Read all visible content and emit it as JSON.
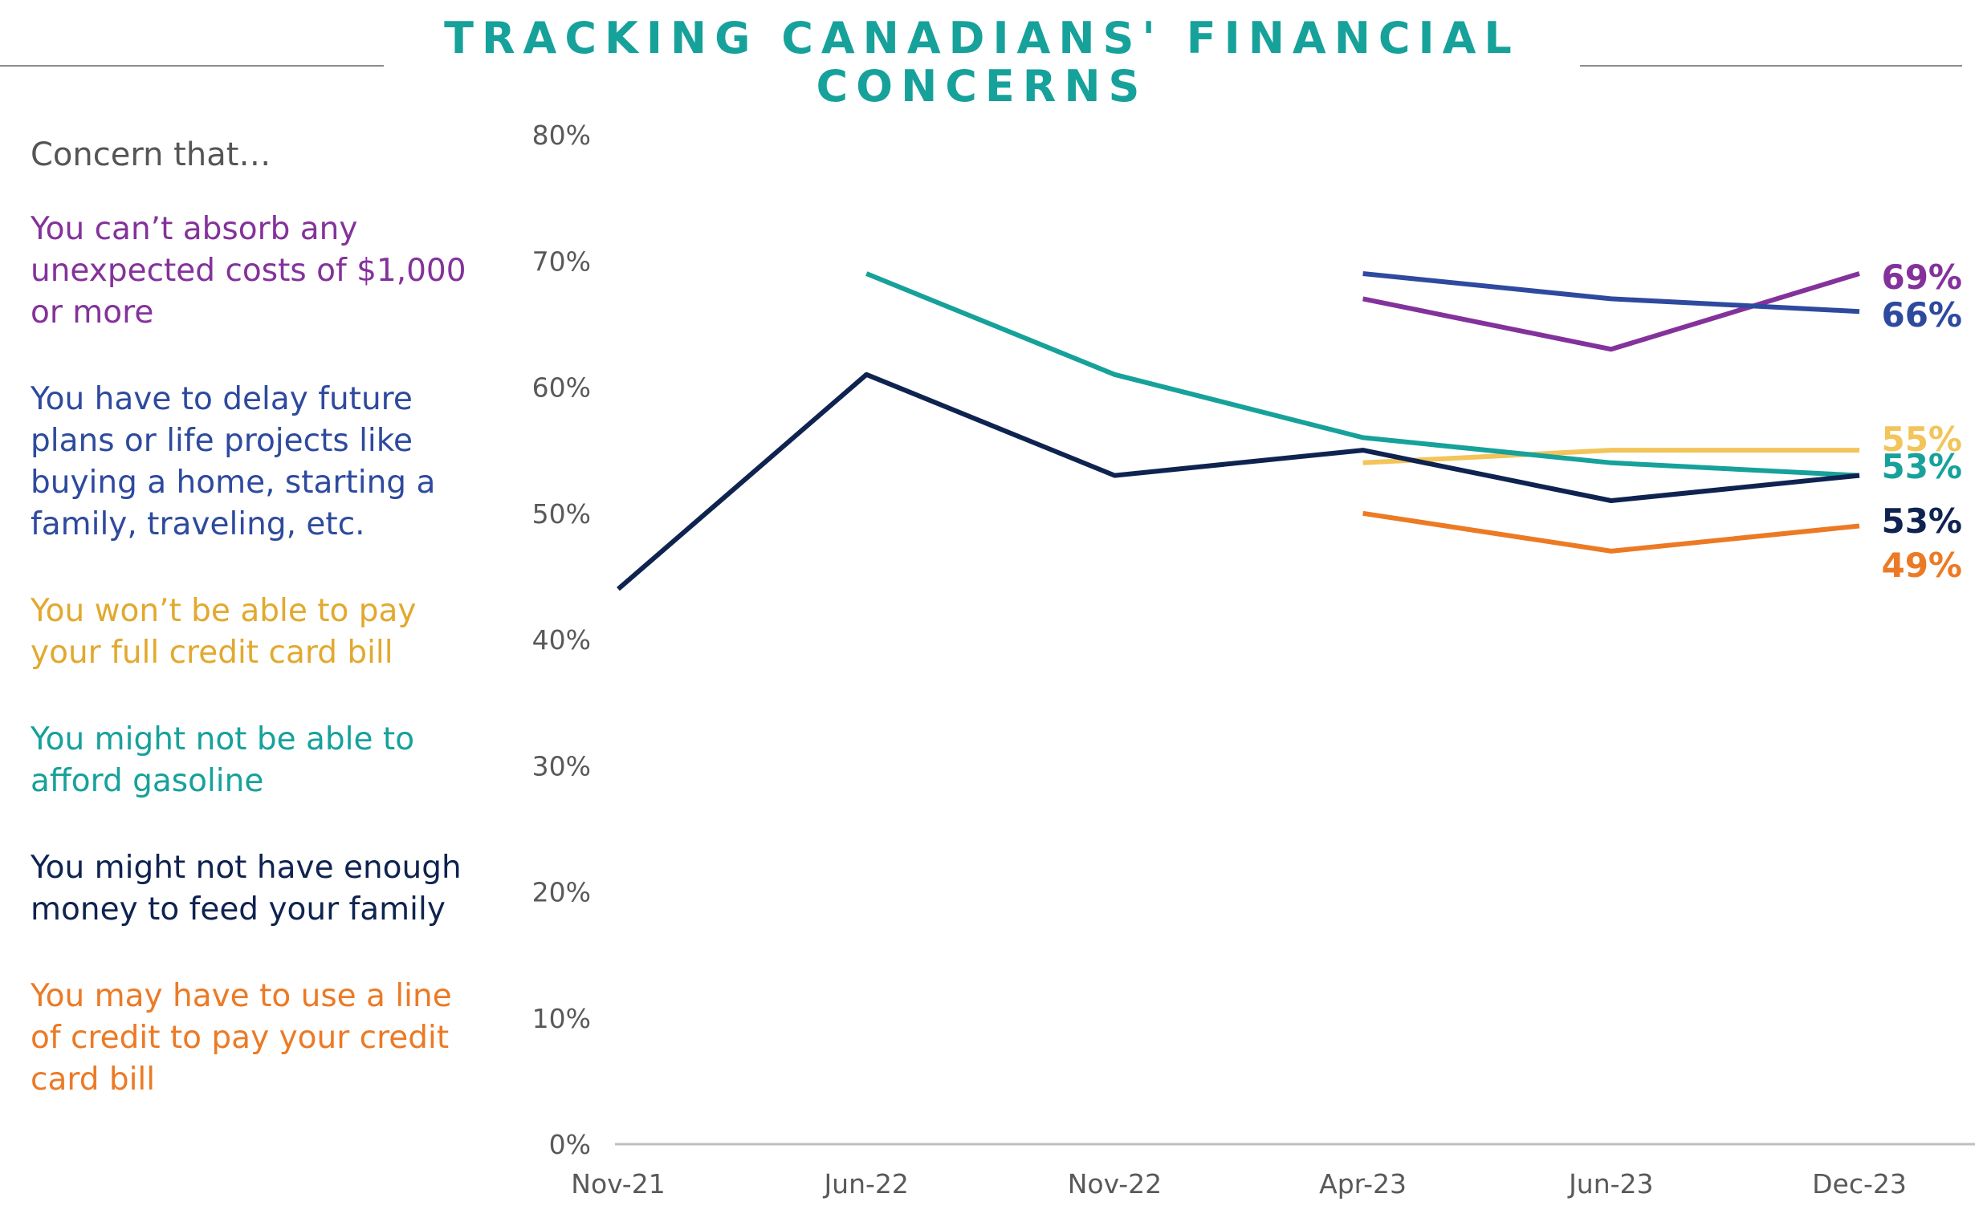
{
  "title": {
    "line1": "TRACKING CANADIANS' FINANCIAL",
    "line2": "CONCERNS"
  },
  "legend": {
    "heading": "Concern that…",
    "items": [
      {
        "lines": [
          "You can’t absorb any",
          "unexpected costs of $1,000",
          "or more"
        ],
        "color": "#84329b"
      },
      {
        "lines": [
          "You have to delay future",
          "plans or life projects like",
          "buying a home, starting a",
          "family, traveling, etc."
        ],
        "color": "#2e4a9e"
      },
      {
        "lines": [
          "You won’t be able to pay",
          "your full credit card bill"
        ],
        "color": "#e2a92f"
      },
      {
        "lines": [
          "You might not be able to",
          "afford gasoline"
        ],
        "color": "#17a19b"
      },
      {
        "lines": [
          "You might not have enough",
          "money to feed your family"
        ],
        "color": "#0f2350"
      },
      {
        "lines": [
          "You may have to use a line",
          "of credit to pay your credit",
          "card bill"
        ],
        "color": "#ec7a25"
      }
    ]
  },
  "chart_data": {
    "type": "line",
    "categories": [
      "Nov-21",
      "Jun-22",
      "Nov-22",
      "Apr-23",
      "Jun-23",
      "Dec-23"
    ],
    "y_ticks": [
      "0%",
      "10%",
      "20%",
      "30%",
      "40%",
      "50%",
      "60%",
      "70%",
      "80%"
    ],
    "ylim": [
      0,
      80
    ],
    "grid": false,
    "series": [
      {
        "key": "absorb",
        "values": [
          null,
          null,
          null,
          67,
          63,
          69
        ],
        "color": "#84329b",
        "end_label": "69%",
        "end_label_color": "#84329b"
      },
      {
        "key": "delay",
        "values": [
          null,
          null,
          null,
          69,
          67,
          66
        ],
        "color": "#2e4a9e",
        "end_label": "66%",
        "end_label_color": "#2e4a9e"
      },
      {
        "key": "credit-card",
        "values": [
          null,
          null,
          null,
          54,
          55,
          55
        ],
        "color": "#f2c45a",
        "end_label": "55%",
        "end_label_color": "#f2c45a"
      },
      {
        "key": "gasoline",
        "values": [
          null,
          69,
          61,
          56,
          54,
          53
        ],
        "color": "#17a19b",
        "end_label": "53%",
        "end_label_color": "#17a19b"
      },
      {
        "key": "feed",
        "values": [
          44,
          61,
          53,
          55,
          51,
          53
        ],
        "color": "#0f2350",
        "end_label": "53%",
        "end_label_color": "#0f2350"
      },
      {
        "key": "line-of-credit",
        "values": [
          null,
          null,
          null,
          50,
          47,
          49
        ],
        "color": "#ec7a25",
        "end_label": "49%",
        "end_label_color": "#ec7a25"
      }
    ]
  }
}
